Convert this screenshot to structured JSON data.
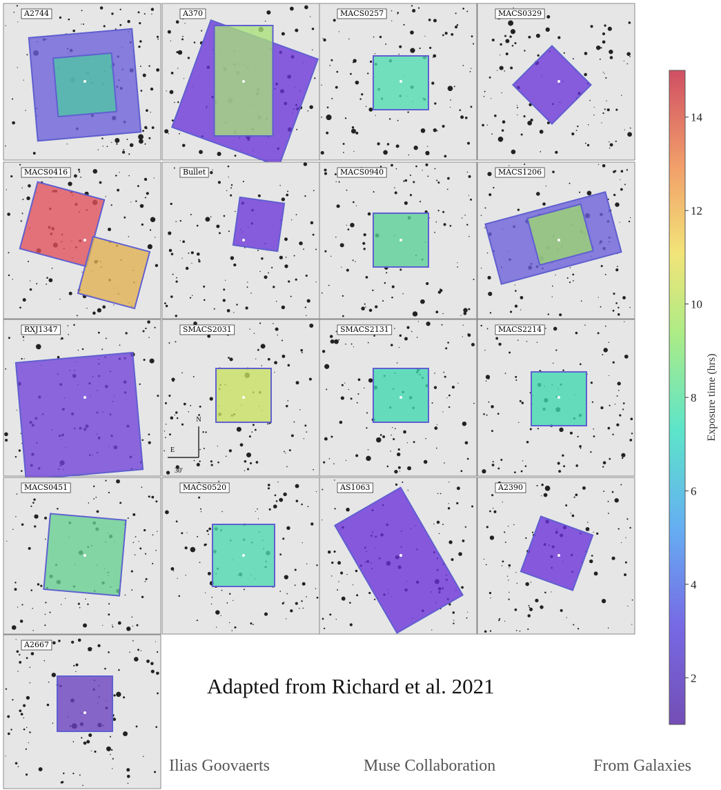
{
  "panels": [
    "A2744",
    "A370",
    "MACS0257",
    "MACS0329",
    "MACS0416",
    "Bullet",
    "MACS0940",
    "MACS1206",
    "RXJ1347",
    "SMACS2031",
    "SMACS2131",
    "MACS2214",
    "MACS0451",
    "MACS0520",
    "AS1063",
    "A2390",
    "A2667"
  ],
  "compass": {
    "north": "N",
    "east": "E",
    "scale": "30'"
  },
  "credit": "Adapted from Richard et al. 2021",
  "footer": [
    "Ilias Goovaerts",
    "Muse Collaboration",
    "From Galaxies"
  ],
  "colorbar": {
    "label": "Exposure time (hrs)",
    "lim": [
      1,
      15
    ],
    "ticks": [
      2,
      4,
      6,
      8,
      10,
      12,
      14
    ]
  }
}
